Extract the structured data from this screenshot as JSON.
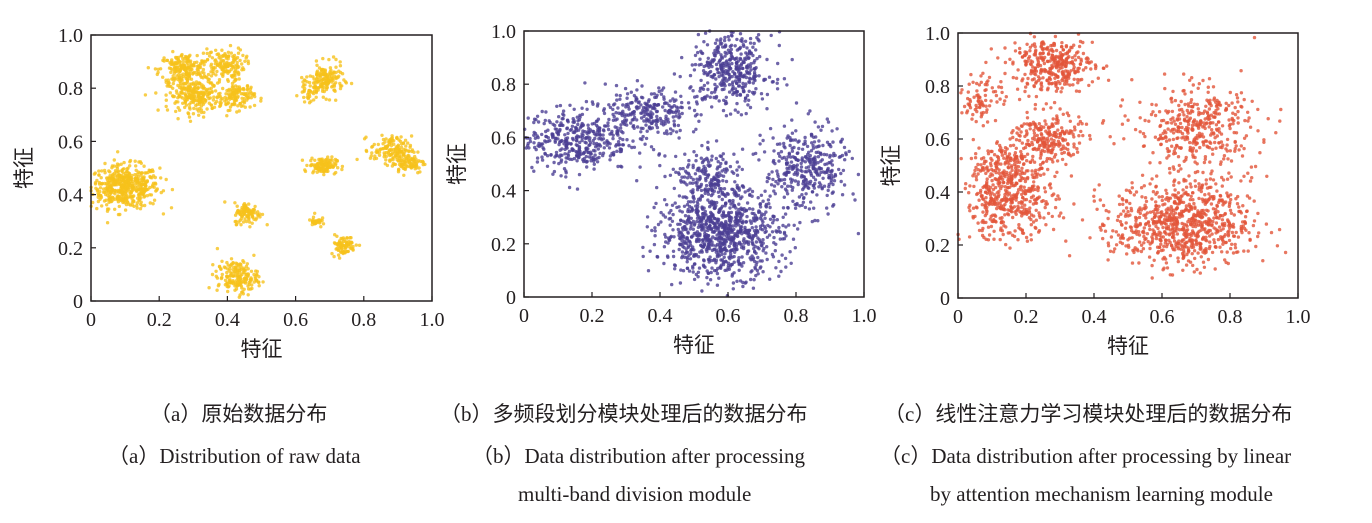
{
  "chart_data": [
    {
      "type": "scatter",
      "id": "a",
      "color": "#f6c21c",
      "xlabel": "特征",
      "ylabel": "特征",
      "xlim": [
        0,
        1
      ],
      "ylim": [
        0,
        1
      ],
      "xticks": [
        "0",
        "0.2",
        "0.4",
        "0.6",
        "0.8",
        "1.0"
      ],
      "yticks": [
        "0",
        "0.2",
        "0.4",
        "0.6",
        "0.8",
        "1.0"
      ],
      "caption_cn": "（a）原始数据分布",
      "caption_en": [
        "（a）Distribution of raw data"
      ],
      "clusters": [
        {
          "cx": 0.1,
          "cy": 0.43,
          "sx": 0.05,
          "sy": 0.04,
          "n": 500
        },
        {
          "cx": 0.27,
          "cy": 0.87,
          "sx": 0.035,
          "sy": 0.03,
          "n": 200
        },
        {
          "cx": 0.39,
          "cy": 0.89,
          "sx": 0.03,
          "sy": 0.03,
          "n": 150
        },
        {
          "cx": 0.31,
          "cy": 0.77,
          "sx": 0.04,
          "sy": 0.03,
          "n": 250
        },
        {
          "cx": 0.43,
          "cy": 0.77,
          "sx": 0.025,
          "sy": 0.025,
          "n": 120
        },
        {
          "cx": 0.69,
          "cy": 0.83,
          "sx": 0.025,
          "sy": 0.03,
          "n": 150
        },
        {
          "cx": 0.64,
          "cy": 0.79,
          "sx": 0.015,
          "sy": 0.02,
          "n": 40
        },
        {
          "cx": 0.68,
          "cy": 0.51,
          "sx": 0.02,
          "sy": 0.015,
          "n": 120
        },
        {
          "cx": 0.88,
          "cy": 0.57,
          "sx": 0.03,
          "sy": 0.025,
          "n": 130
        },
        {
          "cx": 0.93,
          "cy": 0.52,
          "sx": 0.025,
          "sy": 0.02,
          "n": 90
        },
        {
          "cx": 0.46,
          "cy": 0.33,
          "sx": 0.02,
          "sy": 0.02,
          "n": 100
        },
        {
          "cx": 0.66,
          "cy": 0.3,
          "sx": 0.008,
          "sy": 0.012,
          "n": 30
        },
        {
          "cx": 0.74,
          "cy": 0.21,
          "sx": 0.018,
          "sy": 0.018,
          "n": 80
        },
        {
          "cx": 0.43,
          "cy": 0.09,
          "sx": 0.03,
          "sy": 0.03,
          "n": 180
        }
      ]
    },
    {
      "type": "scatter",
      "id": "b",
      "color": "#4b3e94",
      "xlabel": "特征",
      "ylabel": "特征",
      "xlim": [
        0,
        1
      ],
      "ylim": [
        0,
        1
      ],
      "xticks": [
        "0",
        "0.2",
        "0.4",
        "0.6",
        "0.8",
        "1.0"
      ],
      "yticks": [
        "0",
        "0.2",
        "0.4",
        "0.6",
        "0.8",
        "1.0"
      ],
      "caption_cn": "（b）多频段划分模块处理后的数据分布",
      "caption_en": [
        "（b）Data distribution after processing",
        "multi-band division module"
      ],
      "clusters": [
        {
          "cx": 0.15,
          "cy": 0.59,
          "sx": 0.08,
          "sy": 0.06,
          "n": 400
        },
        {
          "cx": 0.36,
          "cy": 0.69,
          "sx": 0.06,
          "sy": 0.05,
          "n": 250
        },
        {
          "cx": 0.61,
          "cy": 0.85,
          "sx": 0.06,
          "sy": 0.07,
          "n": 400
        },
        {
          "cx": 0.83,
          "cy": 0.48,
          "sx": 0.06,
          "sy": 0.08,
          "n": 350
        },
        {
          "cx": 0.58,
          "cy": 0.24,
          "sx": 0.09,
          "sy": 0.08,
          "n": 900
        },
        {
          "cx": 0.55,
          "cy": 0.45,
          "sx": 0.05,
          "sy": 0.05,
          "n": 180
        }
      ]
    },
    {
      "type": "scatter",
      "id": "c",
      "color": "#e2553a",
      "xlabel": "特征",
      "ylabel": "特征",
      "xlim": [
        0,
        1
      ],
      "ylim": [
        0,
        1
      ],
      "xticks": [
        "0",
        "0.2",
        "0.4",
        "0.6",
        "0.8",
        "1.0"
      ],
      "yticks": [
        "0",
        "0.2",
        "0.4",
        "0.6",
        "0.8",
        "1.0"
      ],
      "caption_cn": "（c）线性注意力学习模块处理后的数据分布",
      "caption_en": [
        "（c）Data distribution after processing by linear",
        "by attention mechanism learning module"
      ],
      "clusters": [
        {
          "cx": 0.15,
          "cy": 0.36,
          "sx": 0.07,
          "sy": 0.07,
          "n": 400
        },
        {
          "cx": 0.07,
          "cy": 0.76,
          "sx": 0.03,
          "sy": 0.05,
          "n": 80
        },
        {
          "cx": 0.28,
          "cy": 0.88,
          "sx": 0.06,
          "sy": 0.05,
          "n": 350
        },
        {
          "cx": 0.26,
          "cy": 0.6,
          "sx": 0.05,
          "sy": 0.05,
          "n": 250
        },
        {
          "cx": 0.7,
          "cy": 0.64,
          "sx": 0.09,
          "sy": 0.08,
          "n": 400
        },
        {
          "cx": 0.66,
          "cy": 0.28,
          "sx": 0.1,
          "sy": 0.08,
          "n": 800
        },
        {
          "cx": 0.14,
          "cy": 0.5,
          "sx": 0.05,
          "sy": 0.05,
          "n": 150
        }
      ]
    }
  ]
}
